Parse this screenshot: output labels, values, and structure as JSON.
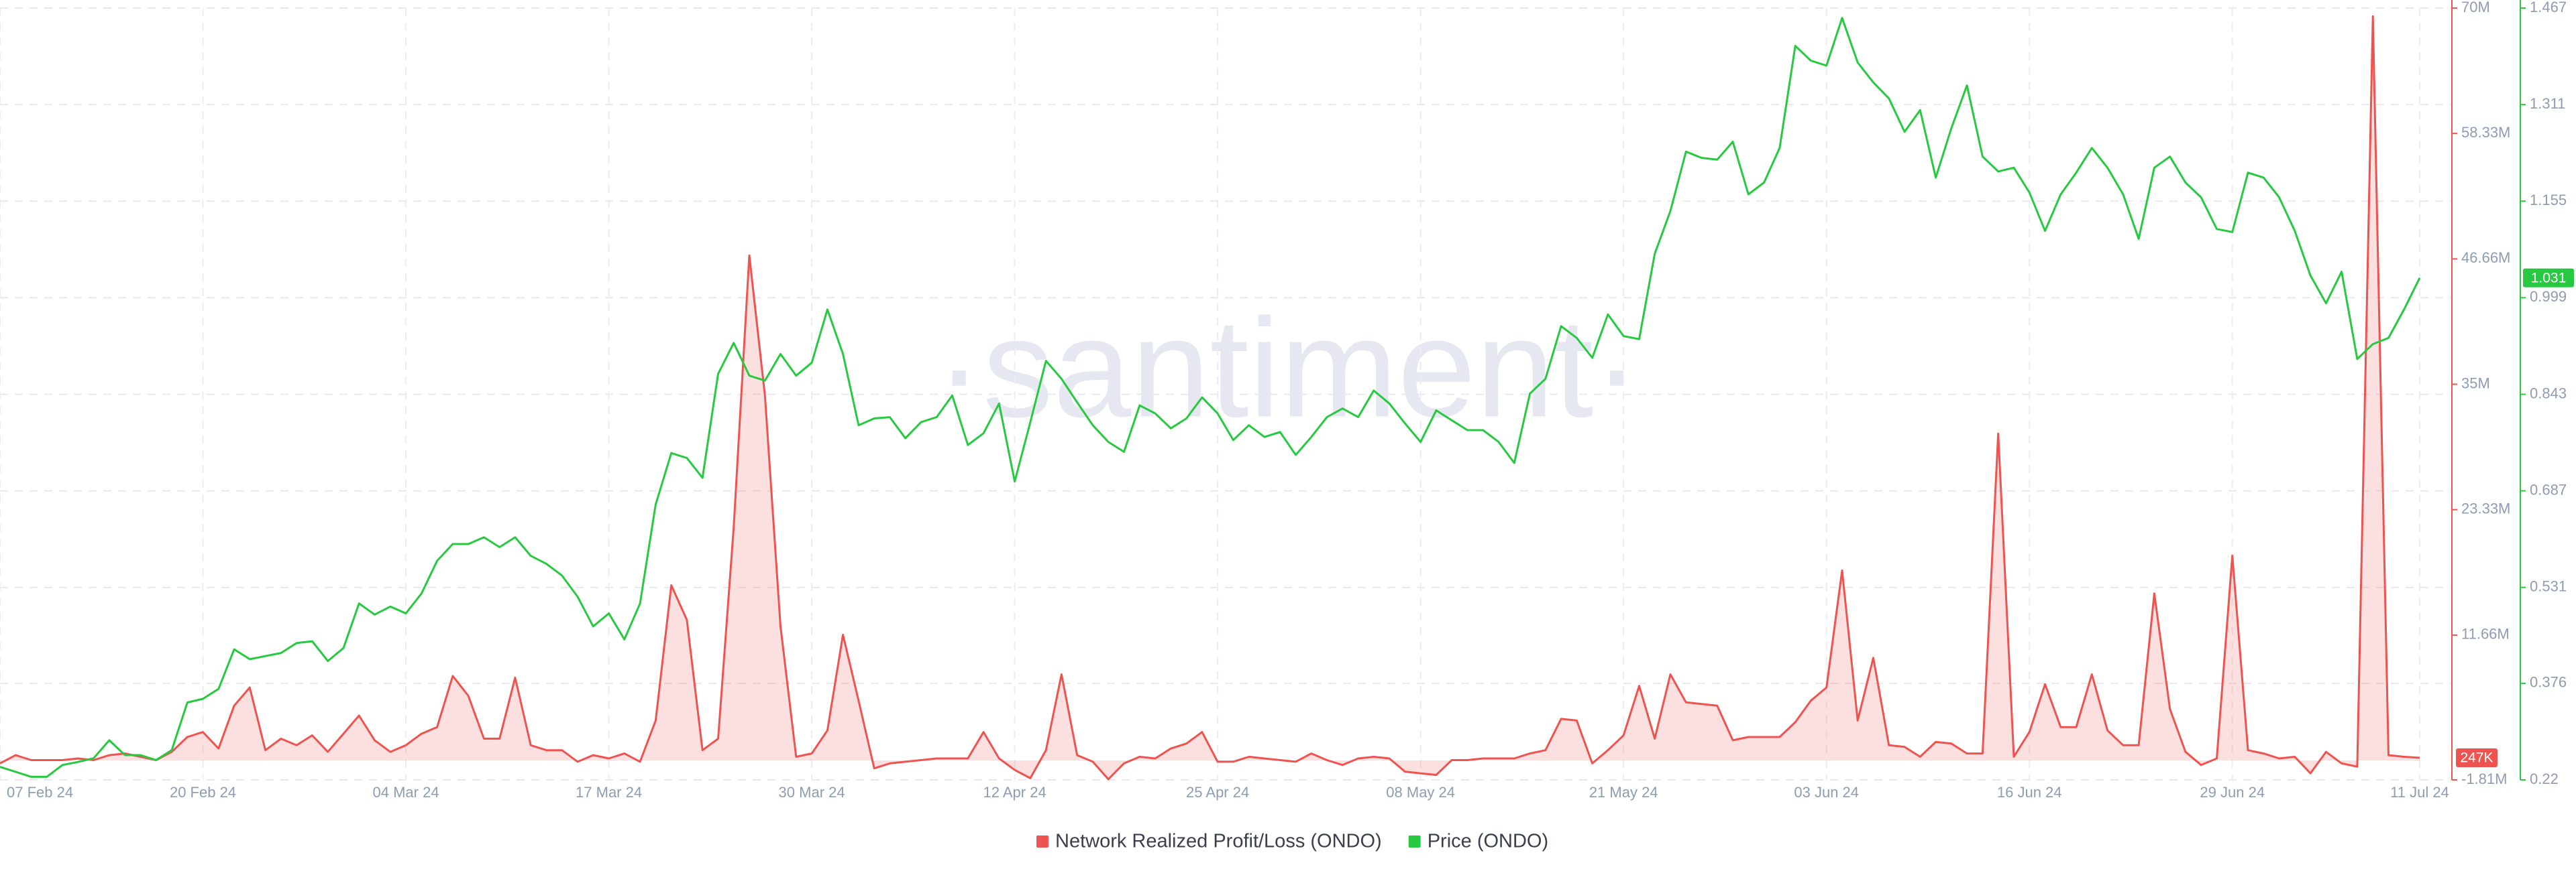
{
  "chart_data": {
    "type": "line",
    "watermark": "·santiment·",
    "categories": [
      "07 Feb 24",
      null,
      null,
      null,
      null,
      null,
      null,
      null,
      null,
      null,
      null,
      null,
      null,
      "20 Feb 24",
      null,
      null,
      null,
      null,
      null,
      null,
      null,
      null,
      null,
      null,
      null,
      null,
      "04 Mar 24",
      null,
      null,
      null,
      null,
      null,
      null,
      null,
      null,
      null,
      null,
      null,
      null,
      "17 Mar 24",
      null,
      null,
      null,
      null,
      null,
      null,
      null,
      null,
      null,
      null,
      null,
      null,
      "30 Mar 24",
      null,
      null,
      null,
      null,
      null,
      null,
      null,
      null,
      null,
      null,
      null,
      null,
      "12 Apr 24",
      null,
      null,
      null,
      null,
      null,
      null,
      null,
      null,
      null,
      null,
      null,
      null,
      "25 Apr 24",
      null,
      null,
      null,
      null,
      null,
      null,
      null,
      null,
      null,
      null,
      null,
      null,
      "08 May 24",
      null,
      null,
      null,
      null,
      null,
      null,
      null,
      null,
      null,
      null,
      null,
      null,
      "21 May 24",
      null,
      null,
      null,
      null,
      null,
      null,
      null,
      null,
      null,
      null,
      null,
      null,
      "03 Jun 24",
      null,
      null,
      null,
      null,
      null,
      null,
      null,
      null,
      null,
      null,
      null,
      null,
      "16 Jun 24",
      null,
      null,
      null,
      null,
      null,
      null,
      null,
      null,
      null,
      null,
      null,
      null,
      "29 Jun 24",
      null,
      null,
      null,
      null,
      null,
      null,
      null,
      null,
      null,
      null,
      null,
      "11 Jul 24"
    ],
    "series": [
      {
        "name": "Network Realized Profit/Loss (ONDO)",
        "color": "#ef5350",
        "fill": true,
        "last_value_label": "247K",
        "values": [
          -276000,
          492000,
          31000,
          31000,
          31000,
          185000,
          31000,
          492000,
          645000,
          338000,
          31000,
          798000,
          2179000,
          2640000,
          1105000,
          5095000,
          6783000,
          952000,
          2026000,
          1412000,
          2333000,
          798000,
          2486000,
          4174000,
          1873000,
          798000,
          1412000,
          2486000,
          3100000,
          7857000,
          6015000,
          2026000,
          2026000,
          7703000,
          1412000,
          952000,
          952000,
          -122000,
          492000,
          185000,
          645000,
          -122000,
          3714000,
          16296000,
          13074000,
          952000,
          2026000,
          21666000,
          46984000,
          33942000,
          12460000,
          338000,
          645000,
          2793000,
          11693000,
          5555000,
          -736000,
          -276000,
          -122000,
          31000,
          185000,
          185000,
          185000,
          2640000,
          185000,
          -889000,
          -1657000,
          952000,
          8010000,
          492000,
          -122000,
          -1750000,
          -276000,
          338000,
          185000,
          1105000,
          1566000,
          2640000,
          -122000,
          -122000,
          338000,
          185000,
          31000,
          -122000,
          645000,
          31000,
          -429000,
          185000,
          338000,
          185000,
          -1043000,
          -1196000,
          -1350000,
          31000,
          31000,
          185000,
          185000,
          185000,
          645000,
          952000,
          3867000,
          3714000,
          -276000,
          952000,
          2333000,
          6936000,
          2026000,
          8010000,
          5402000,
          5248000,
          5095000,
          1873000,
          2179000,
          2179000,
          2179000,
          3560000,
          5555000,
          6783000,
          17677000,
          3714000,
          9545000,
          1412000,
          1259000,
          338000,
          1719000,
          1566000,
          645000,
          645000,
          30412000,
          338000,
          2640000,
          7090000,
          3100000,
          3100000,
          8010000,
          2793000,
          1412000,
          1412000,
          15529000,
          4788000,
          798000,
          -429000,
          185000,
          19058000,
          952000,
          645000,
          185000,
          338000,
          -1196000,
          798000,
          -276000,
          -582000,
          69233000,
          492000,
          338000,
          247000
        ]
      },
      {
        "name": "Price (ONDO)",
        "color": "#26c940",
        "axis": "y2",
        "values": [
          0.241,
          0.233,
          0.225,
          0.225,
          0.244,
          0.249,
          0.255,
          0.284,
          0.26,
          0.26,
          0.252,
          0.268,
          0.345,
          0.351,
          0.367,
          0.431,
          0.415,
          0.42,
          0.425,
          0.441,
          0.444,
          0.412,
          0.433,
          0.505,
          0.487,
          0.5,
          0.489,
          0.521,
          0.574,
          0.601,
          0.601,
          0.612,
          0.596,
          0.612,
          0.582,
          0.569,
          0.55,
          0.516,
          0.468,
          0.489,
          0.447,
          0.505,
          0.665,
          0.748,
          0.74,
          0.708,
          0.876,
          0.926,
          0.873,
          0.865,
          0.908,
          0.873,
          0.894,
          0.98,
          0.908,
          0.793,
          0.804,
          0.806,
          0.772,
          0.798,
          0.806,
          0.841,
          0.761,
          0.78,
          0.828,
          0.702,
          0.798,
          0.897,
          0.868,
          0.83,
          0.793,
          0.766,
          0.75,
          0.825,
          0.812,
          0.788,
          0.804,
          0.838,
          0.812,
          0.769,
          0.793,
          0.774,
          0.782,
          0.745,
          0.774,
          0.806,
          0.82,
          0.806,
          0.849,
          0.828,
          0.796,
          0.766,
          0.817,
          0.801,
          0.785,
          0.785,
          0.766,
          0.732,
          0.844,
          0.868,
          0.953,
          0.934,
          0.902,
          0.972,
          0.937,
          0.932,
          1.07,
          1.139,
          1.235,
          1.225,
          1.222,
          1.251,
          1.166,
          1.185,
          1.241,
          1.406,
          1.382,
          1.374,
          1.451,
          1.379,
          1.347,
          1.321,
          1.267,
          1.302,
          1.193,
          1.273,
          1.342,
          1.227,
          1.203,
          1.209,
          1.169,
          1.107,
          1.166,
          1.201,
          1.241,
          1.209,
          1.166,
          1.094,
          1.209,
          1.227,
          1.185,
          1.161,
          1.11,
          1.105,
          1.201,
          1.193,
          1.161,
          1.107,
          1.035,
          0.99,
          1.041,
          0.9,
          0.924,
          0.934,
          0.98,
          1.031
        ]
      }
    ],
    "ylim": [
      -1810000,
      70000000
    ],
    "yticks": [
      {
        "value": -1810000,
        "label": "-1.81M"
      },
      {
        "value": 11660000,
        "label": "11.66M"
      },
      {
        "value": 23330000,
        "label": "23.33M"
      },
      {
        "value": 35000000,
        "label": "35M"
      },
      {
        "value": 46660000,
        "label": "46.66M"
      },
      {
        "value": 58330000,
        "label": "58.33M"
      },
      {
        "value": 70000000,
        "label": "70M"
      }
    ],
    "y2lim": [
      0.22,
      1.467
    ],
    "y2ticks": [
      0.22,
      0.376,
      0.531,
      0.687,
      0.843,
      0.999,
      1.155,
      1.311,
      1.467
    ],
    "grid": true,
    "legend": "bottom"
  }
}
